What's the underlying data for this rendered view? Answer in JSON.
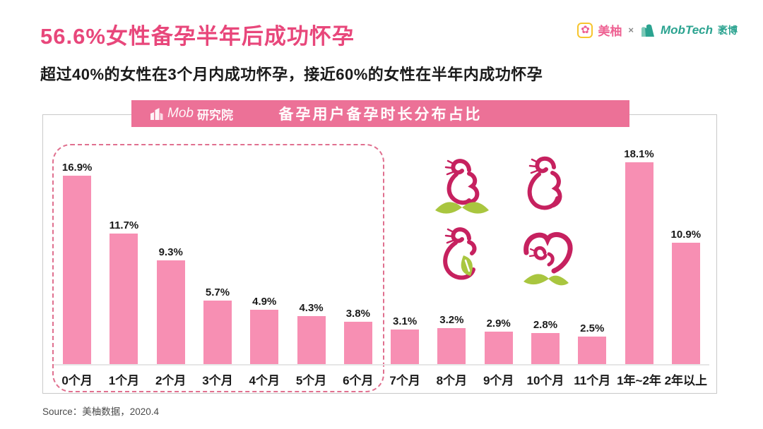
{
  "page": {
    "title": "56.6%女性备孕半年后成功怀孕",
    "subtitle": "超过40%的女性在3个月内成功怀孕，接近60%的女性在半年内成功怀孕",
    "source": "Source：美柚数据，2020.4"
  },
  "brand": {
    "meiyou_label": "美柚",
    "separator": "×",
    "mobtech_label": "MobTech",
    "mobtech_suffix": "袤博"
  },
  "chart_header": {
    "logo_mob": "Mob",
    "logo_suffix": "研究院",
    "title": "备孕用户备孕时长分布占比"
  },
  "colors": {
    "title_pink": "#E8477B",
    "banner_pink": "#EC7197",
    "bar_pink": "#F78FB3",
    "dashed_pink": "#E0708F",
    "magenta": "#C6215F",
    "leaf_green": "#A9C63F",
    "axis_gray": "#E6E6E6",
    "text_dark": "#1A1A1A"
  },
  "chart_data": {
    "type": "bar",
    "title": "备孕用户备孕时长分布占比",
    "categories": [
      "0个月",
      "1个月",
      "2个月",
      "3个月",
      "4个月",
      "5个月",
      "6个月",
      "7个月",
      "8个月",
      "9个月",
      "10个月",
      "11个月",
      "1年~2年",
      "2年以上"
    ],
    "values": [
      16.9,
      11.7,
      9.3,
      5.7,
      4.9,
      4.3,
      3.8,
      3.1,
      3.2,
      2.9,
      2.8,
      2.5,
      18.1,
      10.9
    ],
    "value_labels": [
      "16.9%",
      "11.7%",
      "9.3%",
      "5.7%",
      "4.9%",
      "4.3%",
      "3.8%",
      "3.1%",
      "3.2%",
      "2.9%",
      "2.8%",
      "2.5%",
      "18.1%",
      "10.9%"
    ],
    "unit": "%",
    "ylim": [
      0,
      20
    ],
    "grid": false,
    "legend": false,
    "highlight_range": {
      "from": "0个月",
      "to": "6个月",
      "style": "dashed-outline"
    }
  }
}
